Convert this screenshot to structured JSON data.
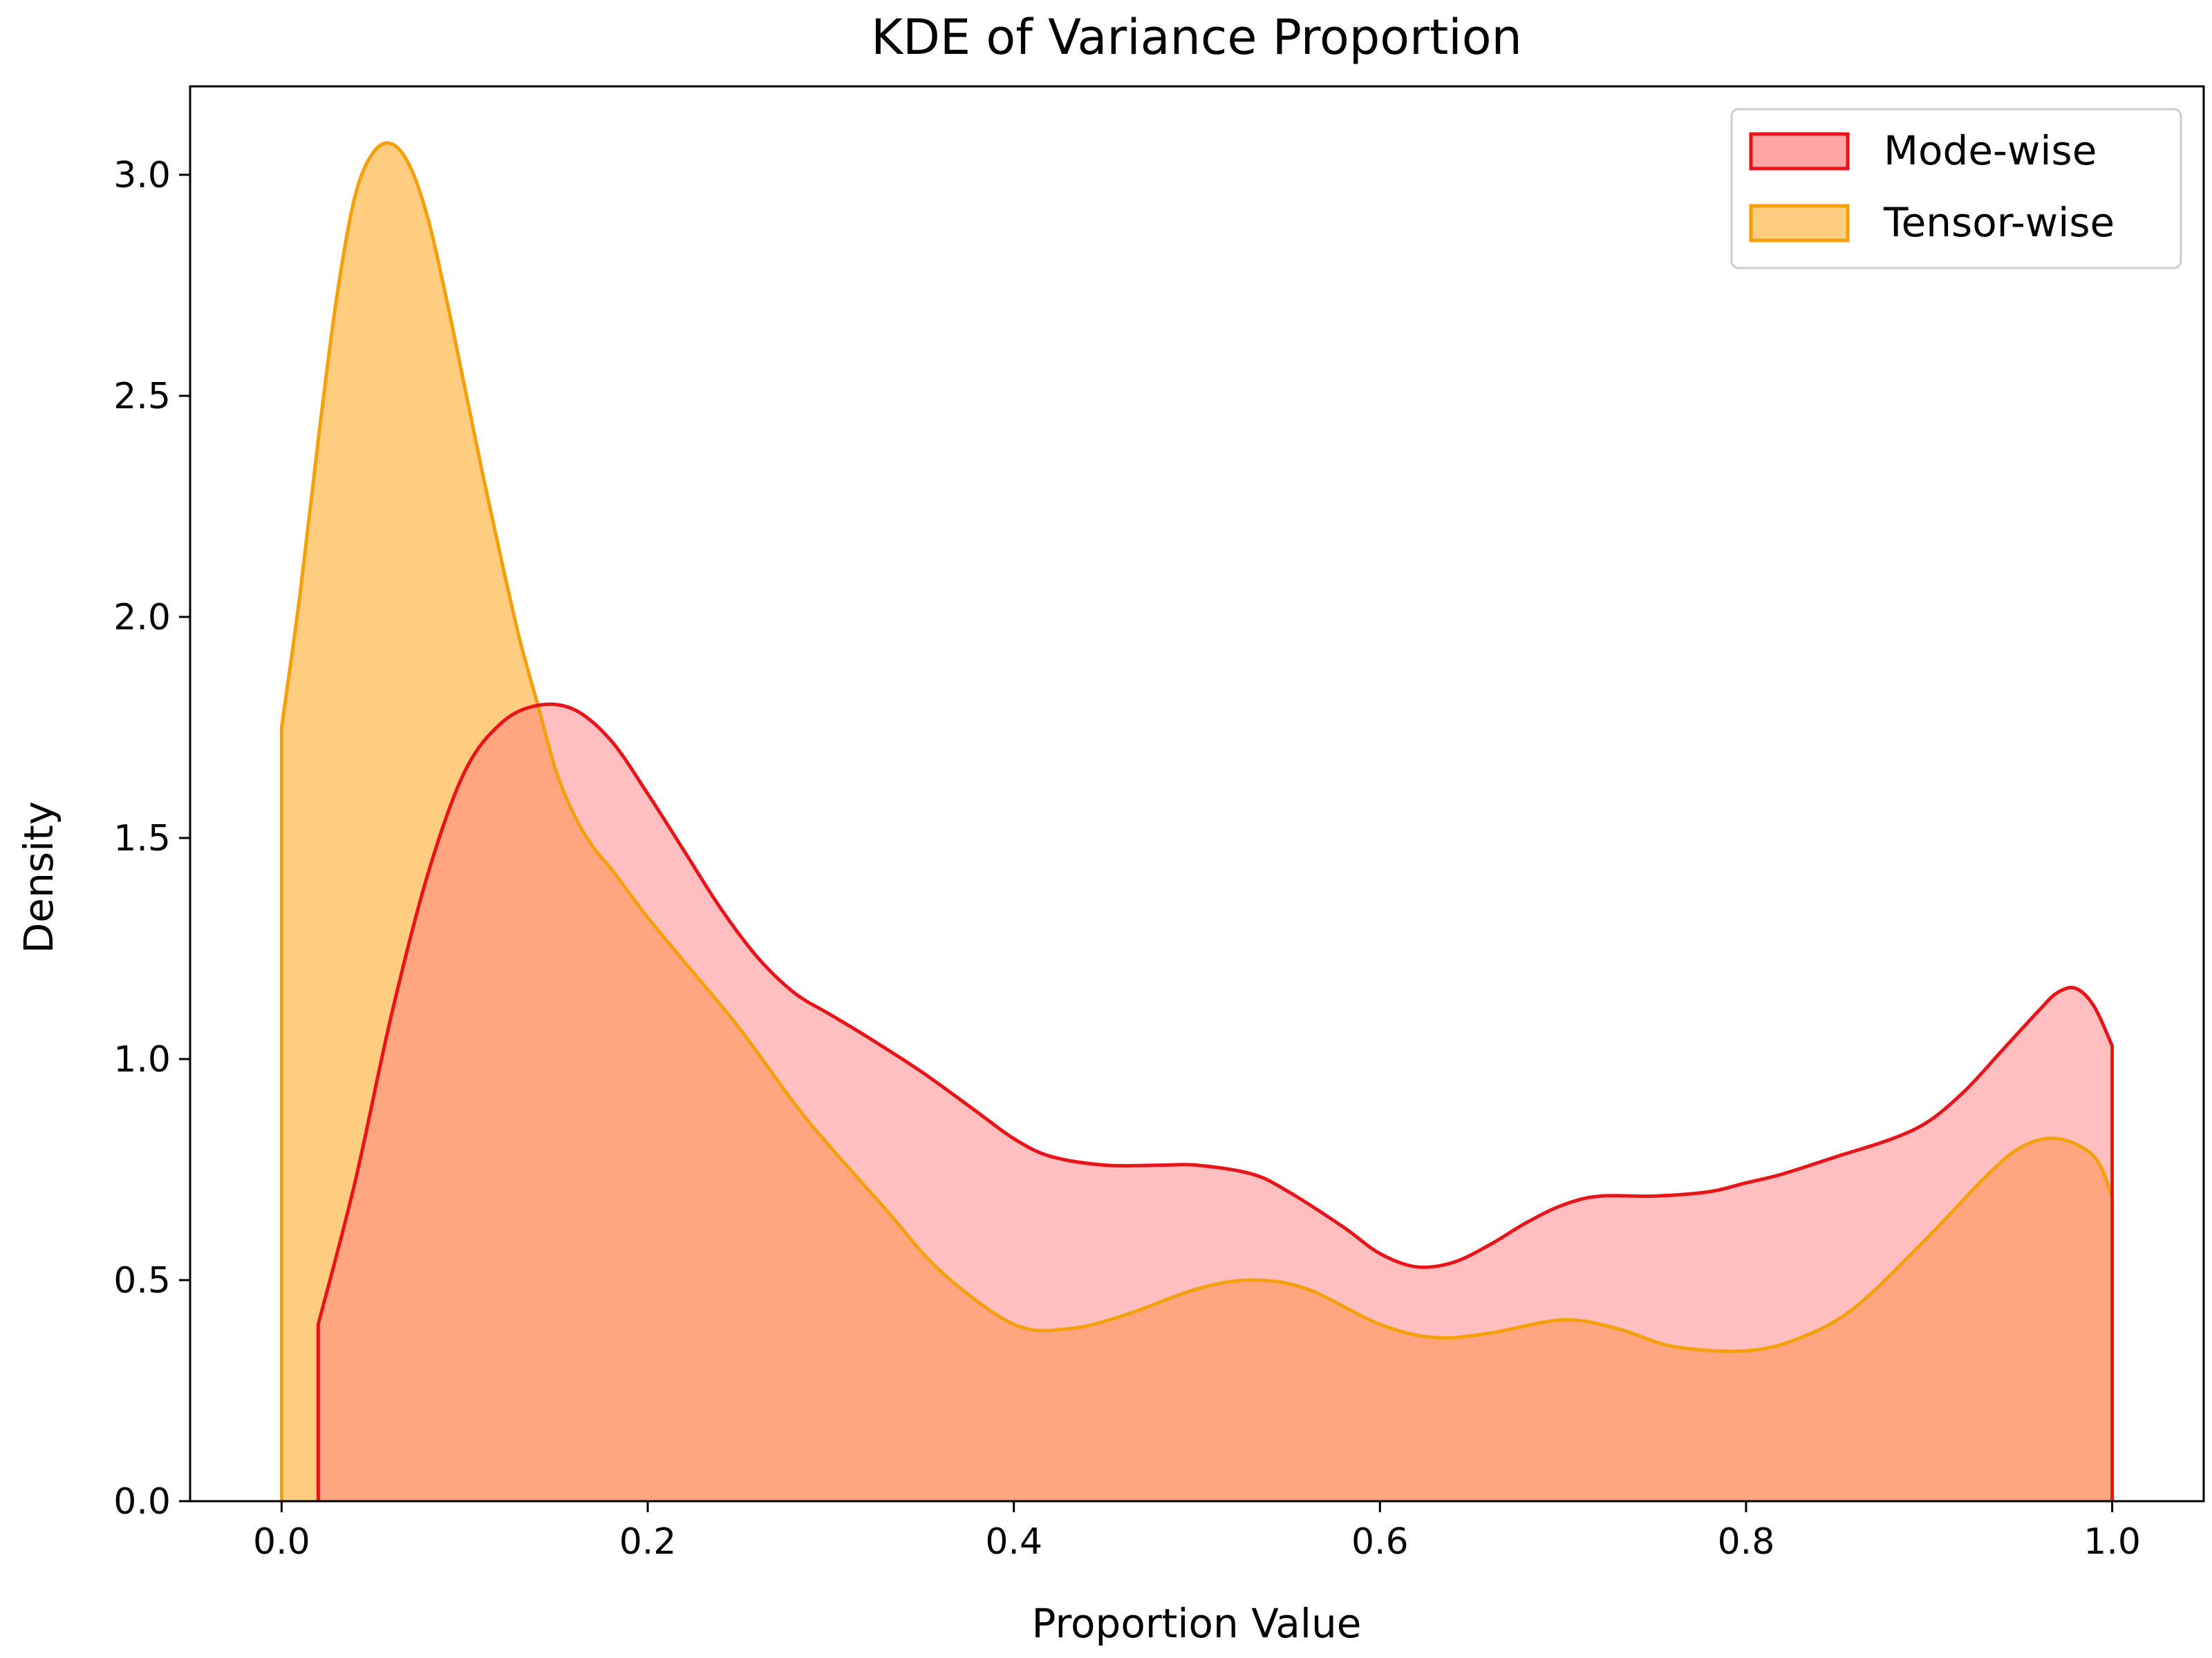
{
  "chart_data": {
    "type": "area",
    "title": "KDE of Variance Proportion",
    "xlabel": "Proportion Value",
    "ylabel": "Density",
    "xlim": [
      -0.05,
      1.05
    ],
    "ylim": [
      0,
      3.2
    ],
    "xticks": [
      0.0,
      0.2,
      0.4,
      0.6,
      0.8,
      1.0
    ],
    "xtick_labels": [
      "0.0",
      "0.2",
      "0.4",
      "0.6",
      "0.8",
      "1.0"
    ],
    "yticks": [
      0.0,
      0.5,
      1.0,
      1.5,
      2.0,
      2.5,
      3.0
    ],
    "ytick_labels": [
      "0.0",
      "0.5",
      "1.0",
      "1.5",
      "2.0",
      "2.5",
      "3.0"
    ],
    "grid": false,
    "legend_position": "top-right",
    "series": [
      {
        "name": "Mode-wise",
        "edge_color": "#e8141a",
        "fill_color": "#ff7f7f",
        "x": [
          0.02,
          0.04,
          0.06,
          0.08,
          0.1,
          0.12,
          0.14,
          0.16,
          0.18,
          0.2,
          0.22,
          0.24,
          0.26,
          0.28,
          0.3,
          0.32,
          0.35,
          0.38,
          0.4,
          0.42,
          0.45,
          0.48,
          0.5,
          0.53,
          0.55,
          0.58,
          0.6,
          0.62,
          0.64,
          0.66,
          0.68,
          0.7,
          0.72,
          0.75,
          0.78,
          0.8,
          0.82,
          0.85,
          0.88,
          0.9,
          0.92,
          0.94,
          0.96,
          0.97,
          0.98,
          0.99,
          1.0
        ],
        "y": [
          0.4,
          0.72,
          1.1,
          1.42,
          1.65,
          1.76,
          1.8,
          1.79,
          1.72,
          1.6,
          1.47,
          1.34,
          1.23,
          1.15,
          1.1,
          1.05,
          0.97,
          0.88,
          0.82,
          0.78,
          0.76,
          0.76,
          0.76,
          0.74,
          0.7,
          0.62,
          0.56,
          0.53,
          0.54,
          0.58,
          0.63,
          0.67,
          0.69,
          0.69,
          0.7,
          0.72,
          0.74,
          0.78,
          0.82,
          0.86,
          0.93,
          1.02,
          1.11,
          1.15,
          1.16,
          1.12,
          1.03
        ]
      },
      {
        "name": "Tensor-wise",
        "edge_color": "#f5a00a",
        "fill_color": "#fdb84a",
        "x": [
          0.0,
          0.01,
          0.02,
          0.03,
          0.04,
          0.05,
          0.06,
          0.07,
          0.08,
          0.09,
          0.1,
          0.11,
          0.12,
          0.13,
          0.14,
          0.15,
          0.16,
          0.17,
          0.18,
          0.2,
          0.22,
          0.25,
          0.28,
          0.3,
          0.33,
          0.36,
          0.4,
          0.43,
          0.46,
          0.5,
          0.53,
          0.56,
          0.6,
          0.63,
          0.66,
          0.7,
          0.73,
          0.76,
          0.8,
          0.83,
          0.86,
          0.9,
          0.93,
          0.95,
          0.97,
          0.99,
          1.0
        ],
        "y": [
          1.75,
          2.05,
          2.4,
          2.72,
          2.95,
          3.05,
          3.07,
          3.02,
          2.9,
          2.72,
          2.52,
          2.32,
          2.13,
          1.95,
          1.8,
          1.65,
          1.55,
          1.48,
          1.43,
          1.32,
          1.22,
          1.07,
          0.9,
          0.8,
          0.66,
          0.52,
          0.4,
          0.39,
          0.42,
          0.48,
          0.5,
          0.48,
          0.4,
          0.37,
          0.38,
          0.41,
          0.39,
          0.35,
          0.34,
          0.37,
          0.44,
          0.6,
          0.73,
          0.8,
          0.82,
          0.78,
          0.69
        ]
      }
    ]
  }
}
